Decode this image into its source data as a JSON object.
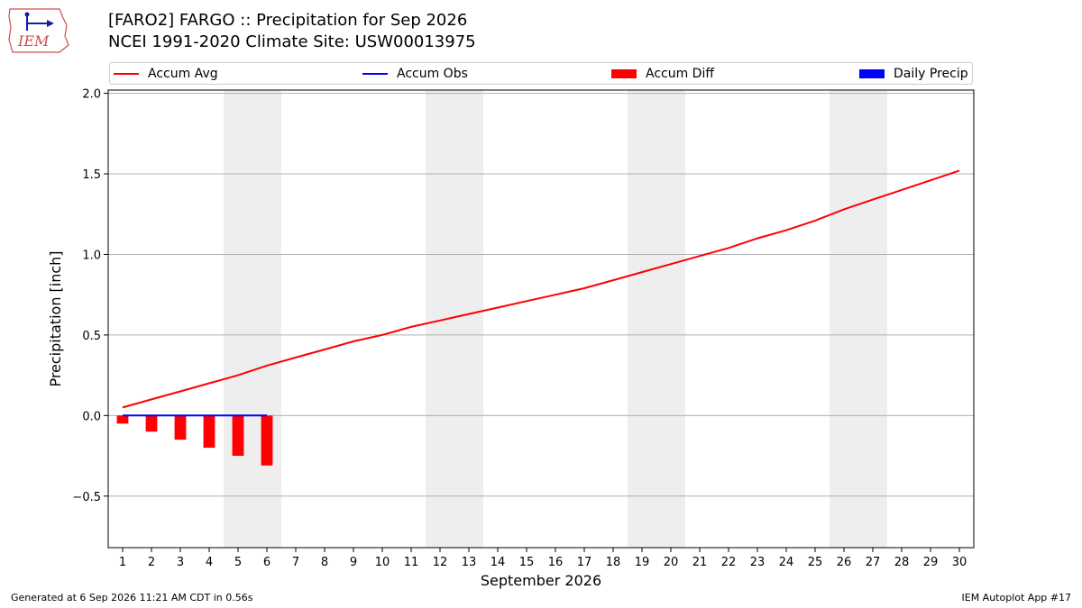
{
  "header": {
    "logo_text": "IEM",
    "title_line1": "[FARO2] FARGO :: Precipitation for Sep 2026",
    "title_line2": "NCEI 1991-2020 Climate Site: USW00013975"
  },
  "legend": {
    "items": [
      {
        "label": "Accum Avg",
        "kind": "line",
        "color": "#ff0000"
      },
      {
        "label": "Accum Obs",
        "kind": "line",
        "color": "#0000ff"
      },
      {
        "label": "Accum Diff",
        "kind": "patch",
        "color": "#ff0000"
      },
      {
        "label": "Daily Precip",
        "kind": "patch",
        "color": "#0000ff"
      }
    ]
  },
  "chart_data": {
    "type": "line",
    "title": "[FARO2] FARGO :: Precipitation for Sep 2026",
    "subtitle": "NCEI 1991-2020 Climate Site: USW00013975",
    "xlabel": "September 2026",
    "ylabel": "Precipitation [inch]",
    "x": [
      1,
      2,
      3,
      4,
      5,
      6,
      7,
      8,
      9,
      10,
      11,
      12,
      13,
      14,
      15,
      16,
      17,
      18,
      19,
      20,
      21,
      22,
      23,
      24,
      25,
      26,
      27,
      28,
      29,
      30
    ],
    "xlim": [
      0.5,
      30.5
    ],
    "ylim": [
      -0.82,
      2.02
    ],
    "yticks": [
      -0.5,
      0.0,
      0.5,
      1.0,
      1.5,
      2.0
    ],
    "ytick_labels": [
      "−0.5",
      "0.0",
      "0.5",
      "1.0",
      "1.5",
      "2.0"
    ],
    "grid": "horizontal",
    "legend_position": "top",
    "weekend_shading": [
      [
        4.5,
        6.5
      ],
      [
        11.5,
        13.5
      ],
      [
        18.5,
        20.5
      ],
      [
        25.5,
        27.5
      ]
    ],
    "series": [
      {
        "name": "Accum Avg",
        "type": "line",
        "color": "#ff0000",
        "x": [
          1,
          2,
          3,
          4,
          5,
          6,
          7,
          8,
          9,
          10,
          11,
          12,
          13,
          14,
          15,
          16,
          17,
          18,
          19,
          20,
          21,
          22,
          23,
          24,
          25,
          26,
          27,
          28,
          29,
          30
        ],
        "values": [
          0.05,
          0.1,
          0.15,
          0.2,
          0.25,
          0.31,
          0.36,
          0.41,
          0.46,
          0.5,
          0.55,
          0.59,
          0.63,
          0.67,
          0.71,
          0.75,
          0.79,
          0.84,
          0.89,
          0.94,
          0.99,
          1.04,
          1.1,
          1.15,
          1.21,
          1.28,
          1.34,
          1.4,
          1.46,
          1.52
        ]
      },
      {
        "name": "Accum Obs",
        "type": "line",
        "color": "#0000ff",
        "x": [
          1,
          2,
          3,
          4,
          5,
          6
        ],
        "values": [
          0.0,
          0.0,
          0.0,
          0.0,
          0.0,
          0.0
        ]
      },
      {
        "name": "Accum Diff",
        "type": "bar",
        "color": "#ff0000",
        "x": [
          1,
          2,
          3,
          4,
          5,
          6
        ],
        "values": [
          -0.05,
          -0.1,
          -0.15,
          -0.2,
          -0.25,
          -0.31
        ]
      },
      {
        "name": "Daily Precip",
        "type": "bar",
        "color": "#0000ff",
        "x": [
          1,
          2,
          3,
          4,
          5,
          6
        ],
        "values": [
          0.0,
          0.0,
          0.0,
          0.0,
          0.0,
          0.0
        ]
      }
    ]
  },
  "footer": {
    "left": "Generated at 6 Sep 2026 11:21 AM CDT in 0.56s",
    "right": "IEM Autoplot App #17"
  }
}
